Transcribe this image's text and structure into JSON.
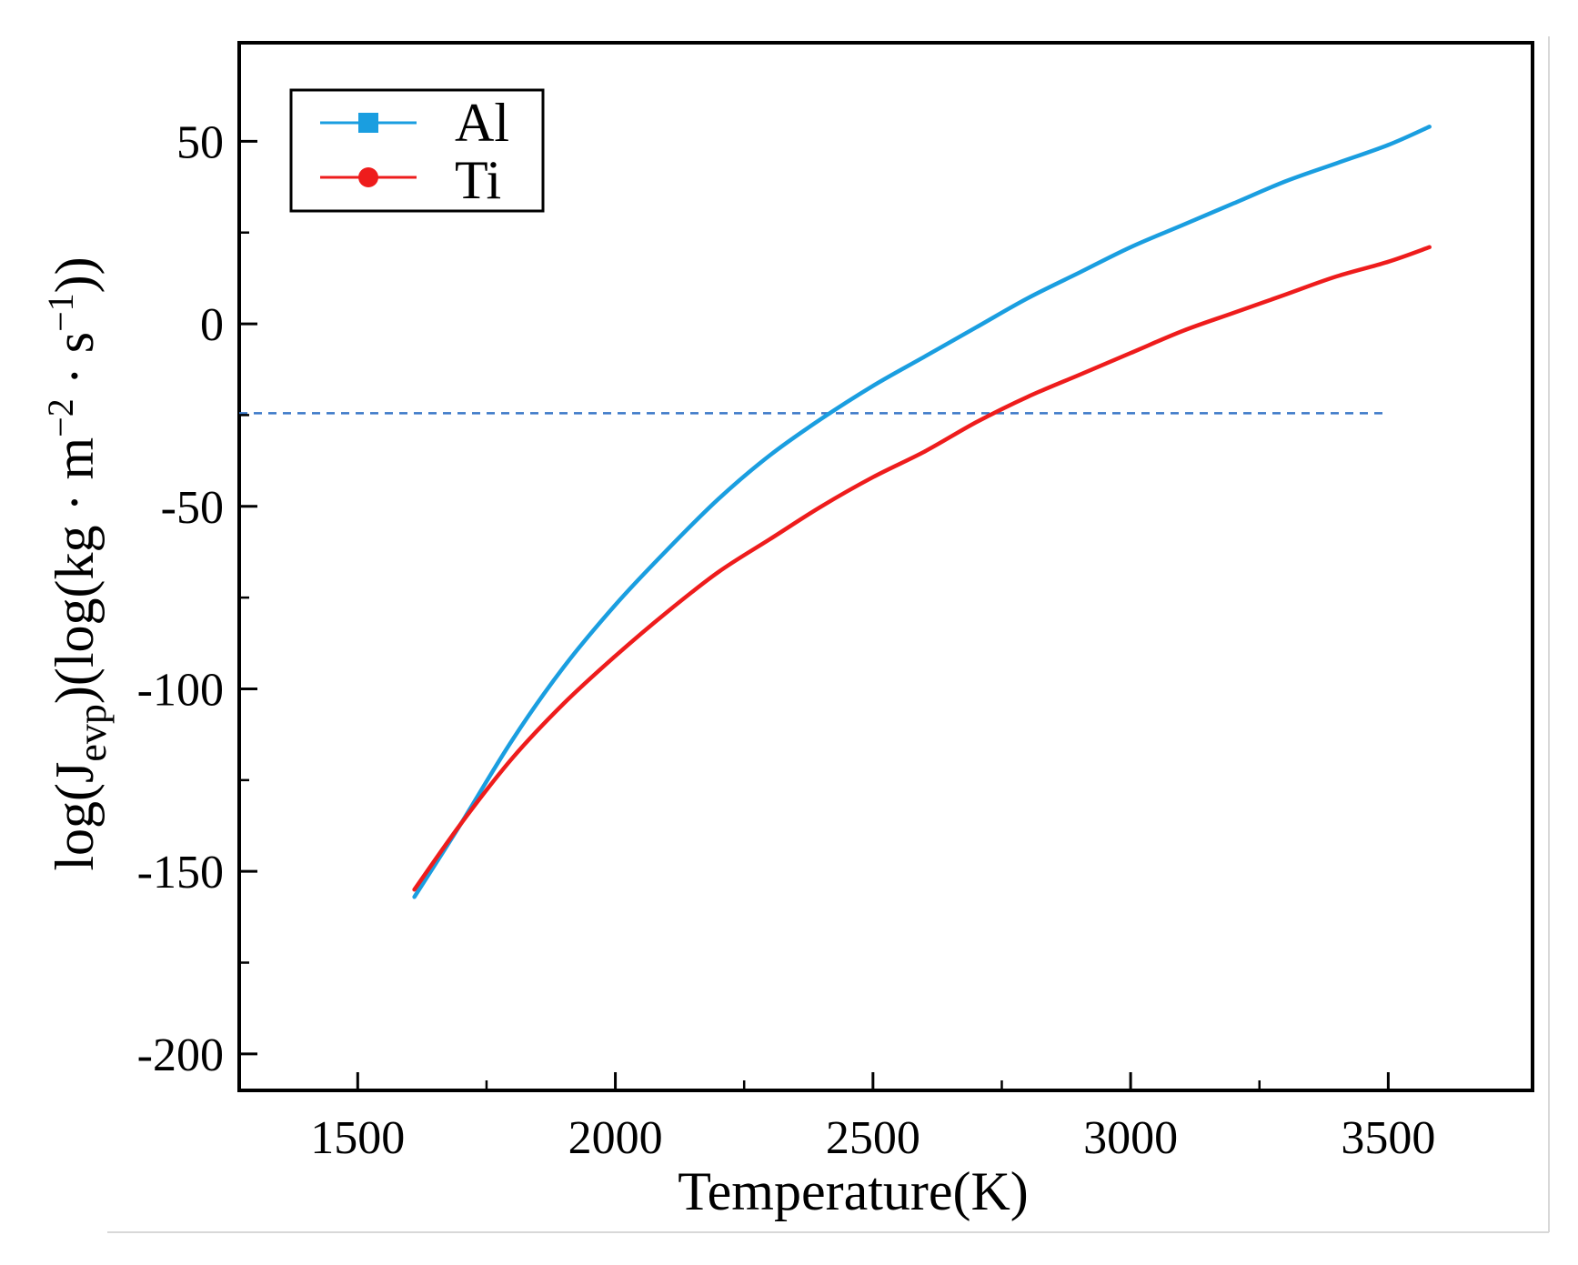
{
  "chart_data": {
    "type": "line",
    "title": "",
    "xlabel": "Temperature(K)",
    "ylabel": {
      "base": "log(J",
      "sub": "evp",
      "mid": ")(log(kg · m",
      "sup1": "−2",
      "mid2": " · s",
      "sup2": "−1",
      "end": "))"
    },
    "xlim": [
      1270,
      3780
    ],
    "ylim": [
      -210,
      77
    ],
    "xticks": [
      1500,
      2000,
      2500,
      3000,
      3500
    ],
    "xtick_labels": [
      "1500",
      "2000",
      "2500",
      "3000",
      "3500"
    ],
    "xminor": [
      1750,
      2250,
      2750,
      3250
    ],
    "yticks": [
      50,
      0,
      -50,
      -100,
      -150,
      -200
    ],
    "ytick_labels": [
      "50",
      "0",
      "-50",
      "-100",
      "-150",
      "-200"
    ],
    "yminor": [
      25,
      -25,
      -75,
      -125,
      -175
    ],
    "legend_position": "top-left",
    "series": [
      {
        "name": "Al",
        "color": "#1a9ee0",
        "marker": "square",
        "x": [
          1610,
          1700,
          1800,
          1900,
          2000,
          2100,
          2200,
          2300,
          2400,
          2500,
          2600,
          2700,
          2800,
          2900,
          3000,
          3100,
          3200,
          3300,
          3400,
          3500,
          3580
        ],
        "y": [
          -157,
          -137,
          -114,
          -94,
          -77,
          -62,
          -48,
          -36,
          -26,
          -17,
          -9,
          -1,
          7,
          14,
          21,
          27,
          33,
          39,
          44,
          49,
          54
        ]
      },
      {
        "name": "Ti",
        "color": "#ee1c1c",
        "marker": "circle",
        "x": [
          1610,
          1700,
          1800,
          1900,
          2000,
          2100,
          2200,
          2300,
          2400,
          2500,
          2600,
          2700,
          2800,
          2900,
          3000,
          3100,
          3200,
          3300,
          3400,
          3500,
          3580
        ],
        "y": [
          -155,
          -137,
          -119,
          -104,
          -91,
          -79,
          -68,
          -59,
          -50,
          -42,
          -35,
          -27,
          -20,
          -14,
          -8,
          -2,
          3,
          8,
          13,
          17,
          21
        ]
      }
    ],
    "reference_line": {
      "y": -24.5,
      "x_start": 1270,
      "x_end": 3500,
      "color": "#3a78c8",
      "style": "dashed"
    }
  }
}
